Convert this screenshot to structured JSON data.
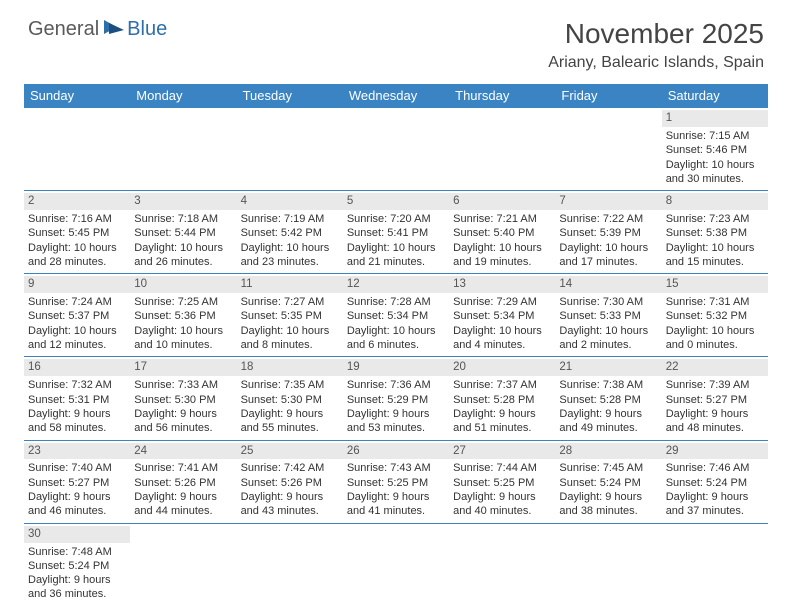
{
  "logo": {
    "general": "General",
    "blue": "Blue"
  },
  "title": "November 2025",
  "location": "Ariany, Balearic Islands, Spain",
  "colors": {
    "header_bg": "#3a84c4",
    "header_text": "#ffffff",
    "daynum_bg": "#e9e9e9",
    "border": "#3a84c4",
    "title_color": "#444444",
    "logo_gray": "#5a5a5a",
    "logo_blue": "#2f6fa8"
  },
  "weekdays": [
    "Sunday",
    "Monday",
    "Tuesday",
    "Wednesday",
    "Thursday",
    "Friday",
    "Saturday"
  ],
  "weeks": [
    [
      null,
      null,
      null,
      null,
      null,
      null,
      {
        "n": "1",
        "sr": "Sunrise: 7:15 AM",
        "ss": "Sunset: 5:46 PM",
        "d1": "Daylight: 10 hours",
        "d2": "and 30 minutes."
      }
    ],
    [
      {
        "n": "2",
        "sr": "Sunrise: 7:16 AM",
        "ss": "Sunset: 5:45 PM",
        "d1": "Daylight: 10 hours",
        "d2": "and 28 minutes."
      },
      {
        "n": "3",
        "sr": "Sunrise: 7:18 AM",
        "ss": "Sunset: 5:44 PM",
        "d1": "Daylight: 10 hours",
        "d2": "and 26 minutes."
      },
      {
        "n": "4",
        "sr": "Sunrise: 7:19 AM",
        "ss": "Sunset: 5:42 PM",
        "d1": "Daylight: 10 hours",
        "d2": "and 23 minutes."
      },
      {
        "n": "5",
        "sr": "Sunrise: 7:20 AM",
        "ss": "Sunset: 5:41 PM",
        "d1": "Daylight: 10 hours",
        "d2": "and 21 minutes."
      },
      {
        "n": "6",
        "sr": "Sunrise: 7:21 AM",
        "ss": "Sunset: 5:40 PM",
        "d1": "Daylight: 10 hours",
        "d2": "and 19 minutes."
      },
      {
        "n": "7",
        "sr": "Sunrise: 7:22 AM",
        "ss": "Sunset: 5:39 PM",
        "d1": "Daylight: 10 hours",
        "d2": "and 17 minutes."
      },
      {
        "n": "8",
        "sr": "Sunrise: 7:23 AM",
        "ss": "Sunset: 5:38 PM",
        "d1": "Daylight: 10 hours",
        "d2": "and 15 minutes."
      }
    ],
    [
      {
        "n": "9",
        "sr": "Sunrise: 7:24 AM",
        "ss": "Sunset: 5:37 PM",
        "d1": "Daylight: 10 hours",
        "d2": "and 12 minutes."
      },
      {
        "n": "10",
        "sr": "Sunrise: 7:25 AM",
        "ss": "Sunset: 5:36 PM",
        "d1": "Daylight: 10 hours",
        "d2": "and 10 minutes."
      },
      {
        "n": "11",
        "sr": "Sunrise: 7:27 AM",
        "ss": "Sunset: 5:35 PM",
        "d1": "Daylight: 10 hours",
        "d2": "and 8 minutes."
      },
      {
        "n": "12",
        "sr": "Sunrise: 7:28 AM",
        "ss": "Sunset: 5:34 PM",
        "d1": "Daylight: 10 hours",
        "d2": "and 6 minutes."
      },
      {
        "n": "13",
        "sr": "Sunrise: 7:29 AM",
        "ss": "Sunset: 5:34 PM",
        "d1": "Daylight: 10 hours",
        "d2": "and 4 minutes."
      },
      {
        "n": "14",
        "sr": "Sunrise: 7:30 AM",
        "ss": "Sunset: 5:33 PM",
        "d1": "Daylight: 10 hours",
        "d2": "and 2 minutes."
      },
      {
        "n": "15",
        "sr": "Sunrise: 7:31 AM",
        "ss": "Sunset: 5:32 PM",
        "d1": "Daylight: 10 hours",
        "d2": "and 0 minutes."
      }
    ],
    [
      {
        "n": "16",
        "sr": "Sunrise: 7:32 AM",
        "ss": "Sunset: 5:31 PM",
        "d1": "Daylight: 9 hours",
        "d2": "and 58 minutes."
      },
      {
        "n": "17",
        "sr": "Sunrise: 7:33 AM",
        "ss": "Sunset: 5:30 PM",
        "d1": "Daylight: 9 hours",
        "d2": "and 56 minutes."
      },
      {
        "n": "18",
        "sr": "Sunrise: 7:35 AM",
        "ss": "Sunset: 5:30 PM",
        "d1": "Daylight: 9 hours",
        "d2": "and 55 minutes."
      },
      {
        "n": "19",
        "sr": "Sunrise: 7:36 AM",
        "ss": "Sunset: 5:29 PM",
        "d1": "Daylight: 9 hours",
        "d2": "and 53 minutes."
      },
      {
        "n": "20",
        "sr": "Sunrise: 7:37 AM",
        "ss": "Sunset: 5:28 PM",
        "d1": "Daylight: 9 hours",
        "d2": "and 51 minutes."
      },
      {
        "n": "21",
        "sr": "Sunrise: 7:38 AM",
        "ss": "Sunset: 5:28 PM",
        "d1": "Daylight: 9 hours",
        "d2": "and 49 minutes."
      },
      {
        "n": "22",
        "sr": "Sunrise: 7:39 AM",
        "ss": "Sunset: 5:27 PM",
        "d1": "Daylight: 9 hours",
        "d2": "and 48 minutes."
      }
    ],
    [
      {
        "n": "23",
        "sr": "Sunrise: 7:40 AM",
        "ss": "Sunset: 5:27 PM",
        "d1": "Daylight: 9 hours",
        "d2": "and 46 minutes."
      },
      {
        "n": "24",
        "sr": "Sunrise: 7:41 AM",
        "ss": "Sunset: 5:26 PM",
        "d1": "Daylight: 9 hours",
        "d2": "and 44 minutes."
      },
      {
        "n": "25",
        "sr": "Sunrise: 7:42 AM",
        "ss": "Sunset: 5:26 PM",
        "d1": "Daylight: 9 hours",
        "d2": "and 43 minutes."
      },
      {
        "n": "26",
        "sr": "Sunrise: 7:43 AM",
        "ss": "Sunset: 5:25 PM",
        "d1": "Daylight: 9 hours",
        "d2": "and 41 minutes."
      },
      {
        "n": "27",
        "sr": "Sunrise: 7:44 AM",
        "ss": "Sunset: 5:25 PM",
        "d1": "Daylight: 9 hours",
        "d2": "and 40 minutes."
      },
      {
        "n": "28",
        "sr": "Sunrise: 7:45 AM",
        "ss": "Sunset: 5:24 PM",
        "d1": "Daylight: 9 hours",
        "d2": "and 38 minutes."
      },
      {
        "n": "29",
        "sr": "Sunrise: 7:46 AM",
        "ss": "Sunset: 5:24 PM",
        "d1": "Daylight: 9 hours",
        "d2": "and 37 minutes."
      }
    ],
    [
      {
        "n": "30",
        "sr": "Sunrise: 7:48 AM",
        "ss": "Sunset: 5:24 PM",
        "d1": "Daylight: 9 hours",
        "d2": "and 36 minutes."
      },
      null,
      null,
      null,
      null,
      null,
      null
    ]
  ]
}
